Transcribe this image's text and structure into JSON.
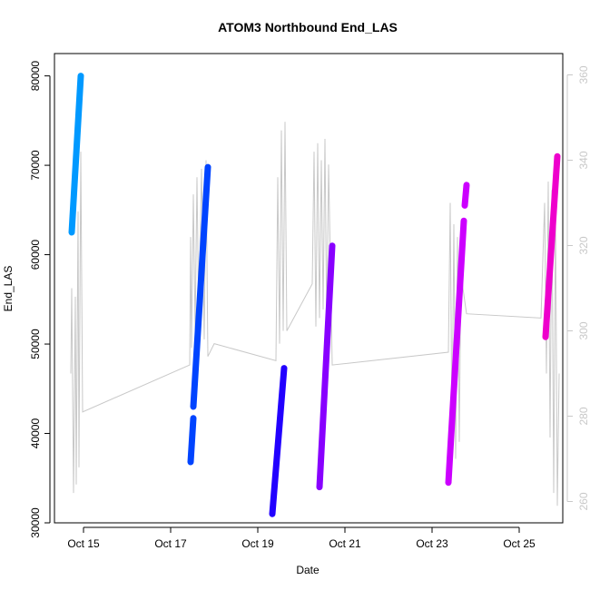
{
  "chart_data": {
    "type": "scatter",
    "title": "ATOM3 Northbound End_LAS",
    "xlabel": "Date",
    "ylabel": "End_LAS",
    "xlim": [
      "2023-10-14T08:00",
      "2023-10-26T00:00"
    ],
    "ylim": [
      30000,
      82500
    ],
    "x_ticks": [
      "Oct 15",
      "Oct 17",
      "Oct 19",
      "Oct 21",
      "Oct 23",
      "Oct 25"
    ],
    "x_tick_dates": [
      "2023-10-15",
      "2023-10-17",
      "2023-10-19",
      "2023-10-21",
      "2023-10-23",
      "2023-10-25"
    ],
    "y_ticks": [
      30000,
      40000,
      50000,
      60000,
      70000,
      80000
    ],
    "y2_ticks": [
      260,
      280,
      300,
      320,
      340,
      360
    ],
    "y2lim": [
      255,
      365
    ],
    "grid": false,
    "secondary_axis_color": "#c8c8c8",
    "series": [
      {
        "color": "#0099ff",
        "segments": [
          {
            "start": "2023-10-14T17:30",
            "end": "2023-10-14T22:30",
            "y_start": 62500,
            "y_end": 80000
          }
        ]
      },
      {
        "color": "#0044ff",
        "segments": [
          {
            "start": "2023-10-17T11:00",
            "end": "2023-10-17T12:30",
            "y_start": 36800,
            "y_end": 41700
          },
          {
            "start": "2023-10-17T12:30",
            "end": "2023-10-17T20:30",
            "y_start": 43000,
            "y_end": 69800
          }
        ]
      },
      {
        "color": "#2200ff",
        "segments": [
          {
            "start": "2023-10-19T08:00",
            "end": "2023-10-19T14:30",
            "y_start": 31000,
            "y_end": 47300
          }
        ]
      },
      {
        "color": "#8800ff",
        "segments": [
          {
            "start": "2023-10-20T10:00",
            "end": "2023-10-20T17:00",
            "y_start": 34000,
            "y_end": 61000
          }
        ]
      },
      {
        "color": "#cc00ff",
        "segments": [
          {
            "start": "2023-10-23T09:00",
            "end": "2023-10-23T17:30",
            "y_start": 34500,
            "y_end": 63800
          },
          {
            "start": "2023-10-23T18:00",
            "end": "2023-10-23T19:00",
            "y_start": 65500,
            "y_end": 67800
          }
        ]
      },
      {
        "color": "#ee00cc",
        "segments": [
          {
            "start": "2023-10-25T14:30",
            "end": "2023-10-25T21:00",
            "y_start": 50800,
            "y_end": 71000
          }
        ]
      }
    ],
    "background_line": {
      "color": "#c8c8c8",
      "axis": "right",
      "points": [
        [
          "2023-10-14T17:00",
          290
        ],
        [
          "2023-10-14T17:30",
          310
        ],
        [
          "2023-10-14T18:30",
          262
        ],
        [
          "2023-10-14T19:30",
          308
        ],
        [
          "2023-10-14T20:00",
          264
        ],
        [
          "2023-10-14T21:00",
          328
        ],
        [
          "2023-10-14T21:30",
          268
        ],
        [
          "2023-10-14T22:30",
          342
        ],
        [
          "2023-10-14T23:30",
          281
        ],
        [
          "2023-10-17T10:30",
          292
        ],
        [
          "2023-10-17T11:00",
          322
        ],
        [
          "2023-10-17T11:30",
          296
        ],
        [
          "2023-10-17T12:30",
          332
        ],
        [
          "2023-10-17T13:30",
          300
        ],
        [
          "2023-10-17T14:30",
          336
        ],
        [
          "2023-10-17T15:30",
          302
        ],
        [
          "2023-10-17T17:00",
          338
        ],
        [
          "2023-10-17T18:30",
          298
        ],
        [
          "2023-10-17T19:30",
          340
        ],
        [
          "2023-10-17T20:30",
          294
        ],
        [
          "2023-10-18T00:00",
          297
        ],
        [
          "2023-10-19T10:00",
          293
        ],
        [
          "2023-10-19T11:00",
          336
        ],
        [
          "2023-10-19T12:00",
          297
        ],
        [
          "2023-10-19T13:00",
          347
        ],
        [
          "2023-10-19T14:00",
          300
        ],
        [
          "2023-10-19T15:00",
          349
        ],
        [
          "2023-10-19T16:00",
          300
        ],
        [
          "2023-10-20T06:00",
          311
        ],
        [
          "2023-10-20T07:00",
          342
        ],
        [
          "2023-10-20T08:00",
          301
        ],
        [
          "2023-10-20T09:00",
          344
        ],
        [
          "2023-10-20T10:00",
          303
        ],
        [
          "2023-10-20T11:00",
          340
        ],
        [
          "2023-10-20T12:00",
          305
        ],
        [
          "2023-10-20T13:00",
          345
        ],
        [
          "2023-10-20T14:00",
          300
        ],
        [
          "2023-10-20T15:00",
          339
        ],
        [
          "2023-10-20T17:00",
          292
        ],
        [
          "2023-10-23T09:00",
          295
        ],
        [
          "2023-10-23T10:00",
          330
        ],
        [
          "2023-10-23T11:00",
          276
        ],
        [
          "2023-10-23T12:00",
          325
        ],
        [
          "2023-10-23T13:00",
          270
        ],
        [
          "2023-10-23T14:00",
          322
        ],
        [
          "2023-10-23T15:00",
          274
        ],
        [
          "2023-10-23T16:00",
          320
        ],
        [
          "2023-10-23T17:00",
          310
        ],
        [
          "2023-10-23T19:00",
          304
        ],
        [
          "2023-10-25T12:00",
          303
        ],
        [
          "2023-10-25T14:00",
          330
        ],
        [
          "2023-10-25T15:00",
          290
        ],
        [
          "2023-10-25T16:00",
          335
        ],
        [
          "2023-10-25T17:00",
          275
        ],
        [
          "2023-10-25T18:00",
          333
        ],
        [
          "2023-10-25T19:00",
          262
        ],
        [
          "2023-10-25T20:00",
          328
        ],
        [
          "2023-10-25T21:00",
          259
        ],
        [
          "2023-10-25T22:00",
          290
        ]
      ]
    }
  }
}
